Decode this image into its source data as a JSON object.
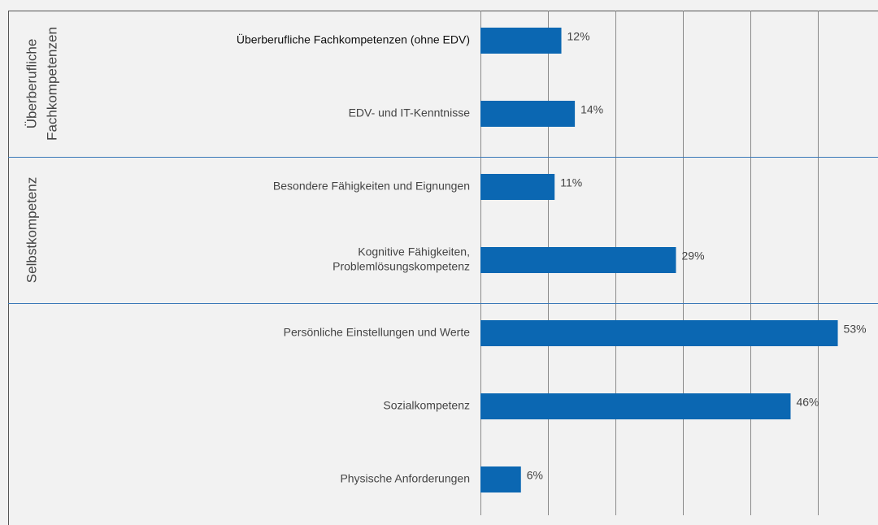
{
  "chart_data": {
    "type": "bar",
    "orientation": "horizontal",
    "color": "#0b67b2",
    "grid": true,
    "xlim": [
      0,
      58
    ],
    "xticks": [
      0,
      10,
      20,
      30,
      40,
      50
    ],
    "groups": [
      {
        "label": [
          "Überberufliche",
          "Fachkompetenzen"
        ],
        "categories": [
          [
            "Überberufliche Fachkompetenzen (ohne EDV)"
          ],
          [
            "EDV- und IT-Kenntnisse"
          ]
        ],
        "values": [
          12,
          14
        ],
        "value_labels": [
          "12%",
          "14%"
        ]
      },
      {
        "label": [
          "Selbstkompetenz"
        ],
        "categories": [
          [
            "Besondere Fähigkeiten und Eignungen"
          ],
          [
            "Kognitive Fähigkeiten,",
            "Problemlösungskompetenz"
          ]
        ],
        "values": [
          11,
          29
        ],
        "value_labels": [
          "11%",
          "29%"
        ]
      },
      {
        "label": null,
        "categories": [
          [
            "Persönliche Einstellungen und Werte"
          ],
          [
            "Sozialkompetenz"
          ],
          [
            "Physische Anforderungen"
          ]
        ],
        "values": [
          53,
          46,
          6
        ],
        "value_labels": [
          "53%",
          "46%",
          "6%"
        ]
      }
    ]
  }
}
